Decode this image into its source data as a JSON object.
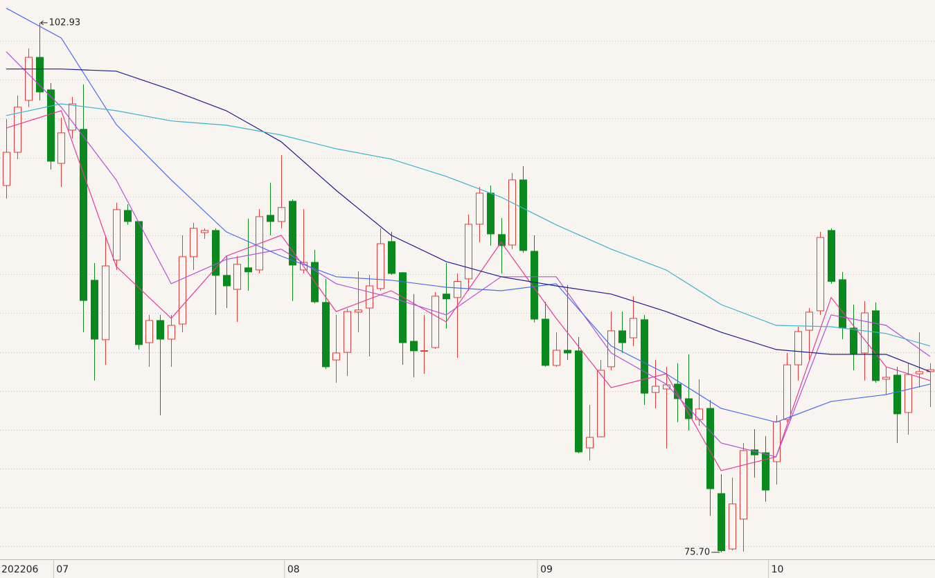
{
  "chart_data": {
    "type": "candlestick",
    "categories": [
      "202206",
      null,
      null,
      null,
      null,
      "07",
      null,
      null,
      null,
      null,
      null,
      null,
      null,
      null,
      null,
      null,
      null,
      null,
      null,
      null,
      null,
      null,
      null,
      null,
      null,
      null,
      "08",
      null,
      null,
      null,
      null,
      null,
      null,
      null,
      null,
      null,
      null,
      null,
      null,
      null,
      null,
      null,
      null,
      null,
      null,
      null,
      null,
      null,
      null,
      "09",
      null,
      null,
      null,
      null,
      null,
      null,
      null,
      null,
      null,
      null,
      null,
      null,
      null,
      null,
      null,
      null,
      null,
      null,
      null,
      null,
      "10",
      null,
      null,
      null,
      null,
      null,
      null,
      null,
      null,
      null,
      null,
      null,
      null,
      null,
      null
    ],
    "open": [
      94.56,
      96.27,
      98.94,
      101.15,
      99.48,
      95.7,
      97.41,
      97.45,
      89.69,
      86.63,
      90.72,
      93.28,
      92.71,
      86.48,
      87.62,
      86.66,
      87.44,
      90.9,
      92.14,
      92.25,
      89.94,
      89.22,
      90.33,
      90.22,
      93.03,
      92.71,
      93.75,
      90.22,
      90.61,
      88.55,
      85.59,
      85.98,
      88.05,
      88.26,
      89.26,
      91.68,
      90.08,
      86.55,
      86.04,
      86.23,
      88.98,
      88.8,
      89.76,
      92.57,
      94.17,
      92.04,
      91.5,
      94.85,
      91.18,
      87.69,
      85.31,
      86.09,
      86.06,
      81.07,
      81.64,
      85.24,
      87.09,
      86.73,
      87.66,
      83.92,
      84.1,
      84.35,
      83.6,
      82.53,
      83.1,
      78.72,
      75.87,
      77.41,
      80.97,
      80.82,
      80.36,
      82.53,
      85.34,
      87.12,
      88.12,
      92.25,
      89.72,
      87.23,
      85.95,
      88.12,
      84.6,
      84.81,
      82.89,
      84.88,
      84.99
    ],
    "high": [
      97.98,
      99.19,
      101.61,
      102.93,
      99.83,
      98.05,
      99.12,
      99.76,
      90.58,
      92.0,
      93.67,
      93.6,
      92.71,
      87.91,
      87.91,
      87.91,
      92.0,
      92.64,
      92.36,
      92.36,
      90.93,
      90.93,
      92.86,
      93.35,
      94.71,
      96.13,
      93.85,
      93.35,
      91.25,
      89.76,
      87.91,
      88.23,
      90.15,
      89.97,
      92.36,
      92.18,
      90.11,
      88.98,
      87.91,
      89.08,
      90.58,
      90.04,
      93.07,
      94.49,
      94.56,
      92.89,
      95.2,
      95.56,
      92.0,
      88.58,
      87.02,
      89.44,
      86.77,
      83.28,
      85.59,
      88.08,
      88.08,
      88.87,
      87.91,
      85.59,
      85.24,
      85.42,
      85.88,
      84.6,
      83.53,
      79.72,
      79.54,
      81.32,
      82.03,
      81.68,
      82.75,
      85.95,
      87.3,
      88.26,
      92.18,
      92.36,
      90.11,
      88.44,
      88.62,
      88.55,
      85.24,
      85.24,
      85.42,
      87.02,
      85.42
    ],
    "low": [
      93.89,
      95.92,
      98.59,
      98.94,
      95.38,
      94.49,
      96.98,
      87.02,
      84.53,
      85.34,
      90.22,
      92.54,
      86.13,
      85.24,
      82.75,
      85.24,
      87.02,
      90.22,
      91.82,
      87.91,
      88.26,
      87.55,
      89.15,
      90.04,
      92.0,
      92.36,
      88.62,
      90.04,
      88.51,
      85.13,
      84.42,
      84.77,
      87.02,
      85.77,
      89.15,
      89.97,
      85.34,
      84.7,
      84.88,
      86.16,
      87.2,
      85.7,
      89.15,
      91.65,
      91.47,
      90.04,
      91.29,
      91.11,
      87.52,
      85.24,
      85.24,
      85.59,
      80.79,
      80.43,
      81.61,
      85.06,
      85.95,
      86.3,
      83.28,
      83.1,
      81.04,
      82.39,
      81.96,
      82.21,
      77.58,
      75.7,
      75.8,
      75.73,
      79.54,
      78.3,
      79.18,
      82.39,
      84.53,
      85.59,
      87.91,
      89.51,
      86.66,
      85.06,
      84.53,
      84.42,
      83.81,
      81.32,
      81.75,
      84.17,
      83.17
    ],
    "close": [
      96.27,
      98.59,
      101.15,
      99.37,
      95.81,
      97.27,
      98.76,
      88.65,
      86.66,
      90.43,
      93.32,
      92.71,
      86.38,
      87.62,
      86.66,
      87.37,
      90.9,
      92.36,
      92.25,
      89.94,
      89.4,
      90.51,
      90.12,
      92.96,
      92.71,
      93.43,
      90.47,
      90.61,
      88.58,
      85.24,
      85.95,
      88.08,
      88.16,
      89.4,
      91.57,
      90.04,
      86.48,
      86.06,
      86.07,
      88.87,
      88.73,
      89.63,
      92.57,
      94.17,
      92.07,
      91.47,
      94.85,
      91.22,
      87.69,
      85.31,
      86.09,
      85.95,
      80.86,
      81.61,
      85.06,
      87.09,
      86.48,
      87.73,
      83.88,
      84.24,
      84.31,
      83.6,
      82.57,
      83.07,
      78.97,
      75.78,
      78.19,
      80.93,
      80.71,
      78.9,
      82.42,
      85.34,
      87.05,
      88.05,
      91.89,
      89.63,
      87.23,
      85.88,
      88.01,
      84.53,
      84.7,
      82.82,
      84.84,
      84.99,
      85.09
    ],
    "up_color": "#e63a3a",
    "down_color": "#0a8a1e",
    "lines": [
      {
        "color": "#e8389a",
        "x": [
          0,
          5,
          10,
          15,
          20,
          25,
          30,
          35,
          40,
          45,
          50,
          55,
          60,
          65,
          70,
          75,
          80,
          84
        ],
        "values": [
          97.52,
          98.41,
          90.4,
          87.73,
          90.93,
          92.0,
          88.08,
          89.15,
          87.55,
          91.65,
          87.73,
          84.17,
          84.88,
          79.9,
          80.61,
          88.8,
          85.24,
          84.53
        ]
      },
      {
        "color": "#b44ed8",
        "x": [
          0,
          5,
          10,
          15,
          20,
          25,
          30,
          35,
          40,
          45,
          50,
          55,
          60,
          65,
          70,
          75,
          80,
          84
        ],
        "values": [
          101.44,
          98.59,
          94.85,
          89.51,
          90.76,
          91.29,
          89.51,
          88.8,
          87.91,
          89.87,
          89.87,
          85.95,
          84.35,
          81.32,
          80.61,
          87.91,
          87.37,
          85.77
        ]
      },
      {
        "color": "#4a6af0",
        "x": [
          0,
          5,
          10,
          15,
          20,
          25,
          30,
          35,
          40,
          45,
          50,
          55,
          60,
          65,
          70,
          75,
          80,
          84
        ],
        "values": [
          103.68,
          102.15,
          97.7,
          94.85,
          92.18,
          90.93,
          89.87,
          89.69,
          89.33,
          89.15,
          89.51,
          86.31,
          84.88,
          83.1,
          82.39,
          83.46,
          83.81,
          84.35
        ]
      },
      {
        "color": "#1c1c8c",
        "x": [
          0,
          5,
          10,
          15,
          20,
          25,
          30,
          35,
          40,
          45,
          50,
          55,
          60,
          65,
          70,
          75,
          80,
          84
        ],
        "values": [
          100.55,
          100.55,
          100.44,
          99.48,
          98.41,
          96.81,
          94.31,
          92.0,
          90.65,
          89.87,
          89.4,
          88.98,
          88.08,
          87.02,
          86.13,
          85.88,
          85.88,
          84.99
        ]
      },
      {
        "color": "#38b4cc",
        "x": [
          0,
          5,
          10,
          15,
          20,
          25,
          30,
          35,
          40,
          45,
          50,
          55,
          60,
          65,
          70,
          75,
          80,
          84
        ],
        "values": [
          98.16,
          98.76,
          98.41,
          97.88,
          97.66,
          97.16,
          96.45,
          95.92,
          95.03,
          93.96,
          92.54,
          91.29,
          90.22,
          88.44,
          87.37,
          87.3,
          86.95,
          86.31
        ]
      }
    ],
    "annotations": [
      {
        "text": "102.93",
        "value": 102.93
      },
      {
        "text": "75.70",
        "value": 75.7
      }
    ],
    "ylim": [
      75.34,
      104.1
    ],
    "yticks": [
      76,
      78,
      80,
      82,
      84,
      86,
      88,
      90,
      92,
      94,
      96,
      98,
      100,
      102
    ],
    "grid": true
  }
}
